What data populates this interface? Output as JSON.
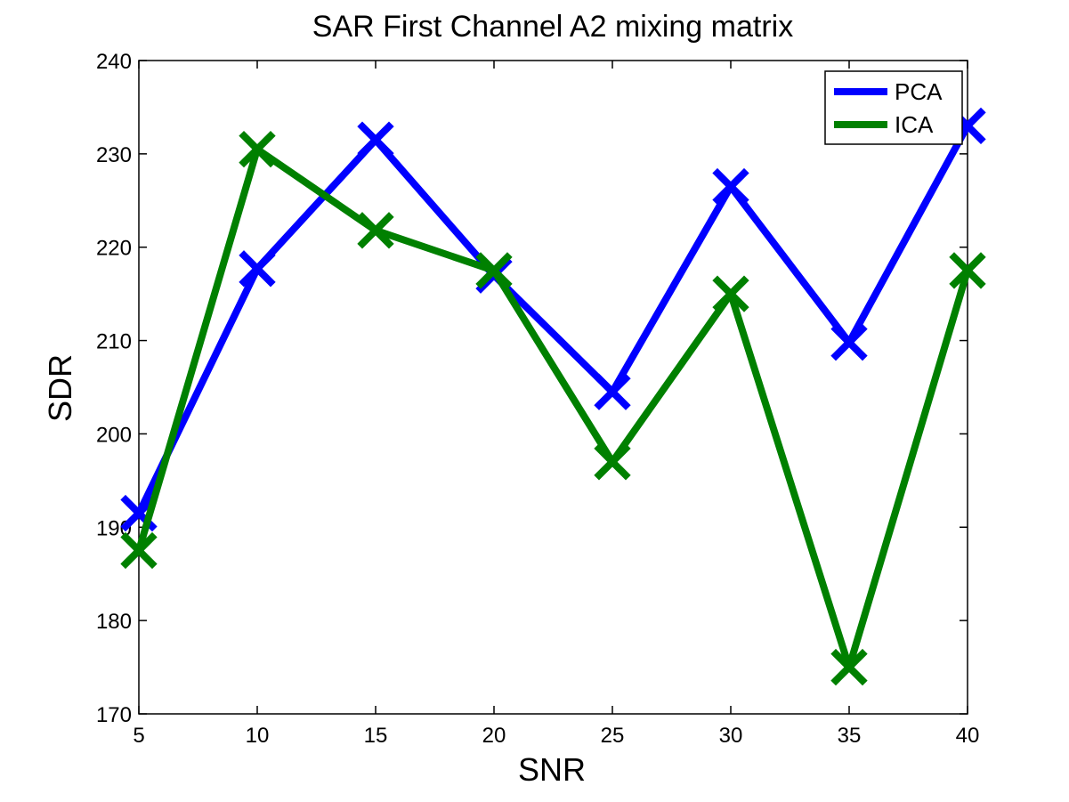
{
  "chart_data": {
    "type": "line",
    "title": "SAR First Channel A2 mixing matrix",
    "xlabel": "SNR",
    "ylabel": "SDR",
    "x": [
      5,
      10,
      15,
      20,
      25,
      30,
      35,
      40
    ],
    "xlim": [
      5,
      40
    ],
    "ylim": [
      170,
      240
    ],
    "xticks": [
      5,
      10,
      15,
      20,
      25,
      30,
      35,
      40
    ],
    "yticks": [
      170,
      180,
      190,
      200,
      210,
      220,
      230,
      240
    ],
    "grid": false,
    "legend_position": "top-right",
    "marker": "x",
    "series": [
      {
        "name": "PCA",
        "color": "#0000ff",
        "values": [
          191.5,
          217.7,
          231.5,
          217.0,
          204.5,
          226.5,
          209.8,
          233.0
        ]
      },
      {
        "name": "ICA",
        "color": "#008000",
        "values": [
          187.5,
          230.5,
          221.8,
          217.5,
          197.0,
          215.0,
          175.0,
          217.5
        ]
      }
    ]
  }
}
